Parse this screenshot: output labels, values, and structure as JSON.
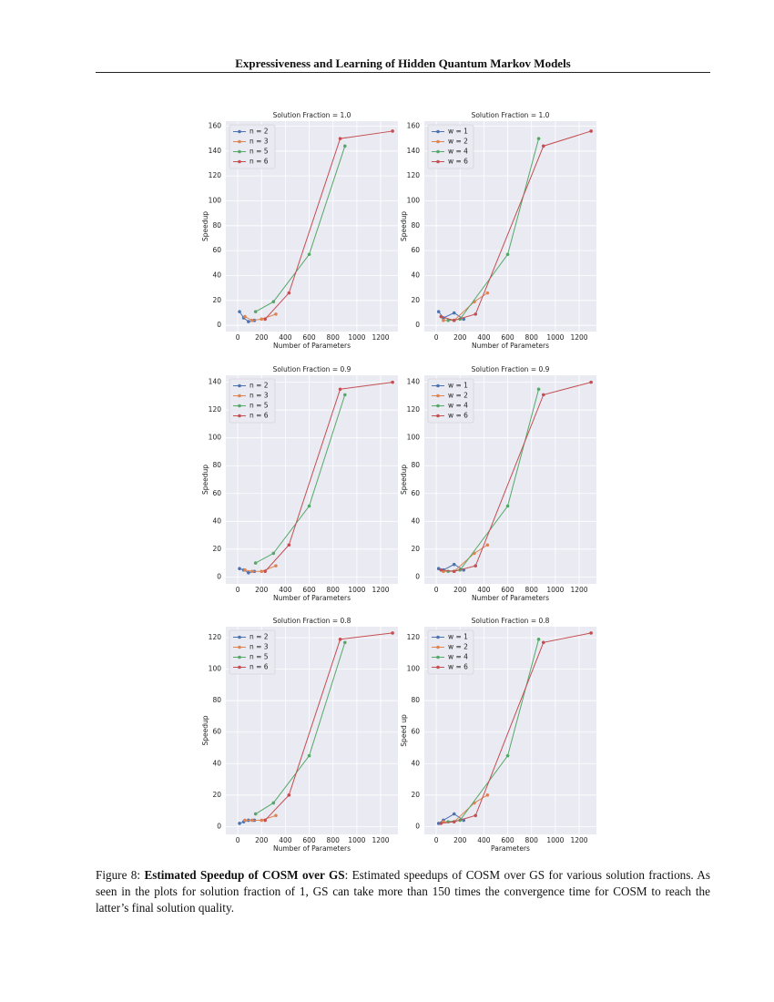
{
  "header": {
    "title": "Expressiveness and Learning of Hidden Quantum Markov Models"
  },
  "chart_data": [
    {
      "type": "line",
      "title": "Solution Fraction = 1.0",
      "xlabel": "Number of Parameters",
      "ylabel": "Speedup",
      "xlim": [
        -100,
        1345
      ],
      "ylim": [
        -5,
        164
      ],
      "xticks": [
        0,
        200,
        400,
        600,
        800,
        1000,
        1200
      ],
      "yticks": [
        0,
        20,
        40,
        60,
        80,
        100,
        120,
        140,
        160
      ],
      "grid": true,
      "legend": "upper-left",
      "series": [
        {
          "name": "n = 2",
          "color": "#4c72b0",
          "x": [
            15,
            50,
            90,
            140
          ],
          "values": [
            11,
            6,
            3,
            4
          ]
        },
        {
          "name": "n = 3",
          "color": "#dd8452",
          "x": [
            60,
            120,
            200,
            320
          ],
          "values": [
            7,
            4,
            5,
            9
          ]
        },
        {
          "name": "n = 5",
          "color": "#55a868",
          "x": [
            150,
            300,
            600,
            900
          ],
          "values": [
            11,
            19,
            57,
            144
          ]
        },
        {
          "name": "n = 6",
          "color": "#c44e52",
          "x": [
            230,
            430,
            860,
            1300
          ],
          "values": [
            5,
            26,
            150,
            156
          ]
        }
      ]
    },
    {
      "type": "line",
      "title": "Solution Fraction = 1.0",
      "xlabel": "Number of Parameters",
      "ylabel": "Speedup",
      "xlim": [
        -100,
        1345
      ],
      "ylim": [
        -5,
        164
      ],
      "xticks": [
        0,
        200,
        400,
        600,
        800,
        1000,
        1200
      ],
      "yticks": [
        0,
        20,
        40,
        60,
        80,
        100,
        120,
        140,
        160
      ],
      "grid": true,
      "legend": "upper-left",
      "series": [
        {
          "name": "w = 1",
          "color": "#4c72b0",
          "x": [
            20,
            60,
            150,
            230
          ],
          "values": [
            11,
            6,
            10,
            5
          ]
        },
        {
          "name": "w = 2",
          "color": "#dd8452",
          "x": [
            60,
            150,
            320,
            430
          ],
          "values": [
            4,
            4,
            19,
            26
          ]
        },
        {
          "name": "w = 4",
          "color": "#55a868",
          "x": [
            100,
            200,
            600,
            860
          ],
          "values": [
            4,
            5,
            57,
            150
          ]
        },
        {
          "name": "w = 6",
          "color": "#c44e52",
          "x": [
            40,
            150,
            330,
            900,
            1300
          ],
          "values": [
            7,
            4,
            9,
            144,
            156
          ]
        }
      ]
    },
    {
      "type": "line",
      "title": "Solution Fraction = 0.9",
      "xlabel": "Number of Parameters",
      "ylabel": "Speedup",
      "xlim": [
        -100,
        1345
      ],
      "ylim": [
        -5,
        145
      ],
      "xticks": [
        0,
        200,
        400,
        600,
        800,
        1000,
        1200
      ],
      "yticks": [
        0,
        20,
        40,
        60,
        80,
        100,
        120,
        140
      ],
      "grid": true,
      "legend": "upper-left",
      "series": [
        {
          "name": "n = 2",
          "color": "#4c72b0",
          "x": [
            15,
            50,
            90,
            140
          ],
          "values": [
            6,
            5,
            3,
            4
          ]
        },
        {
          "name": "n = 3",
          "color": "#dd8452",
          "x": [
            60,
            120,
            200,
            320
          ],
          "values": [
            5,
            4,
            4,
            8
          ]
        },
        {
          "name": "n = 5",
          "color": "#55a868",
          "x": [
            150,
            300,
            600,
            900
          ],
          "values": [
            10,
            17,
            51,
            131
          ]
        },
        {
          "name": "n = 6",
          "color": "#c44e52",
          "x": [
            230,
            430,
            860,
            1300
          ],
          "values": [
            4,
            23,
            135,
            140
          ]
        }
      ]
    },
    {
      "type": "line",
      "title": "Solution Fraction = 0.9",
      "xlabel": "Number of Parameters",
      "ylabel": "Speedup",
      "xlim": [
        -100,
        1345
      ],
      "ylim": [
        -5,
        145
      ],
      "xticks": [
        0,
        200,
        400,
        600,
        800,
        1000,
        1200
      ],
      "yticks": [
        0,
        20,
        40,
        60,
        80,
        100,
        120,
        140
      ],
      "grid": true,
      "legend": "upper-left",
      "series": [
        {
          "name": "w = 1",
          "color": "#4c72b0",
          "x": [
            20,
            60,
            150,
            230
          ],
          "values": [
            6,
            5,
            9,
            5
          ]
        },
        {
          "name": "w = 2",
          "color": "#dd8452",
          "x": [
            60,
            150,
            320,
            430
          ],
          "values": [
            4,
            4,
            17,
            23
          ]
        },
        {
          "name": "w = 4",
          "color": "#55a868",
          "x": [
            100,
            200,
            600,
            860
          ],
          "values": [
            4,
            5,
            51,
            135
          ]
        },
        {
          "name": "w = 6",
          "color": "#c44e52",
          "x": [
            40,
            150,
            330,
            900,
            1300
          ],
          "values": [
            5,
            4,
            8,
            131,
            140
          ]
        }
      ]
    },
    {
      "type": "line",
      "title": "Solution Fraction = 0.8",
      "xlabel": "Number of Parameters",
      "ylabel": "Speedup",
      "xlim": [
        -100,
        1345
      ],
      "ylim": [
        -5,
        127
      ],
      "xticks": [
        0,
        200,
        400,
        600,
        800,
        1000,
        1200
      ],
      "yticks": [
        0,
        20,
        40,
        60,
        80,
        100,
        120
      ],
      "grid": true,
      "legend": "upper-left",
      "series": [
        {
          "name": "n = 2",
          "color": "#4c72b0",
          "x": [
            15,
            50,
            90,
            140
          ],
          "values": [
            2,
            3,
            4,
            4
          ]
        },
        {
          "name": "n = 3",
          "color": "#dd8452",
          "x": [
            60,
            120,
            200,
            320
          ],
          "values": [
            4,
            4,
            4,
            7
          ]
        },
        {
          "name": "n = 5",
          "color": "#55a868",
          "x": [
            150,
            300,
            600,
            900
          ],
          "values": [
            8,
            15,
            45,
            117
          ]
        },
        {
          "name": "n = 6",
          "color": "#c44e52",
          "x": [
            230,
            430,
            860,
            1300
          ],
          "values": [
            4,
            20,
            119,
            123
          ]
        }
      ]
    },
    {
      "type": "line",
      "title": "Solution Fraction = 0.8",
      "xlabel": "Parameters",
      "ylabel": "Speed up",
      "xlim": [
        -100,
        1345
      ],
      "ylim": [
        -5,
        127
      ],
      "xticks": [
        0,
        200,
        400,
        600,
        800,
        1000,
        1200
      ],
      "yticks": [
        0,
        20,
        40,
        60,
        80,
        100,
        120
      ],
      "grid": true,
      "legend": "upper-left",
      "series": [
        {
          "name": "w = 1",
          "color": "#4c72b0",
          "x": [
            20,
            60,
            150,
            230
          ],
          "values": [
            2,
            4,
            8,
            4
          ]
        },
        {
          "name": "w = 2",
          "color": "#dd8452",
          "x": [
            60,
            150,
            320,
            430
          ],
          "values": [
            3,
            3,
            15,
            20
          ]
        },
        {
          "name": "w = 4",
          "color": "#55a868",
          "x": [
            100,
            200,
            600,
            860
          ],
          "values": [
            3,
            4,
            45,
            119
          ]
        },
        {
          "name": "w = 6",
          "color": "#c44e52",
          "x": [
            40,
            150,
            330,
            900,
            1300
          ],
          "values": [
            2,
            3,
            7,
            117,
            123
          ]
        }
      ]
    }
  ],
  "caption": {
    "label": "Figure 8:",
    "bold": "Estimated Speedup of COSM over GS",
    "text": ": Estimated speedups of COSM over GS for various solution fractions. As seen in the plots for solution fraction of 1, GS can take more than 150 times the convergence time for COSM to reach the latter’s final solution quality."
  }
}
